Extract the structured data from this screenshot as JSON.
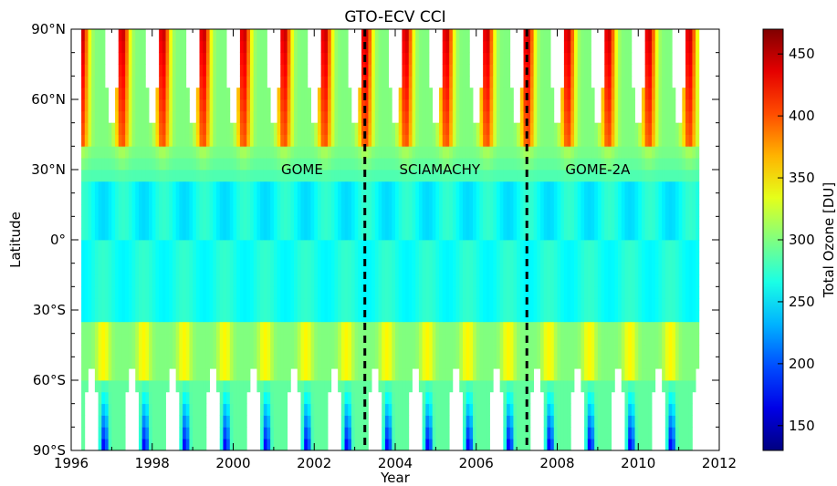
{
  "chart_data": {
    "type": "heatmap",
    "title": "GTO-ECV CCI",
    "xlabel": "Year",
    "ylabel": "Latitude",
    "xlim": [
      1996,
      2012
    ],
    "ylim": [
      -90,
      90
    ],
    "x_ticks": [
      {
        "value": 1996,
        "label": "1996"
      },
      {
        "value": 1998,
        "label": "1998"
      },
      {
        "value": 2000,
        "label": "2000"
      },
      {
        "value": 2002,
        "label": "2002"
      },
      {
        "value": 2004,
        "label": "2004"
      },
      {
        "value": 2006,
        "label": "2006"
      },
      {
        "value": 2008,
        "label": "2008"
      },
      {
        "value": 2010,
        "label": "2010"
      },
      {
        "value": 2012,
        "label": "2012"
      }
    ],
    "y_ticks": [
      {
        "value": 90,
        "label": "90°N"
      },
      {
        "value": 60,
        "label": "60°N"
      },
      {
        "value": 30,
        "label": "30°N"
      },
      {
        "value": 0,
        "label": "0°"
      },
      {
        "value": -30,
        "label": "30°S"
      },
      {
        "value": -60,
        "label": "60°S"
      },
      {
        "value": -90,
        "label": "90°S"
      }
    ],
    "colorbar": {
      "label": "Total Ozone [DU]",
      "range": [
        130,
        470
      ],
      "colormap": "jet",
      "ticks": [
        {
          "value": 150,
          "label": "150"
        },
        {
          "value": 200,
          "label": "200"
        },
        {
          "value": 250,
          "label": "250"
        },
        {
          "value": 300,
          "label": "300"
        },
        {
          "value": 350,
          "label": "350"
        },
        {
          "value": 400,
          "label": "400"
        },
        {
          "value": 450,
          "label": "450"
        }
      ]
    },
    "data_time_range": [
      1996.25,
      2011.5
    ],
    "latitude_bands_deg": [
      -87.5,
      -82.5,
      -77.5,
      -72.5,
      -67.5,
      -62.5,
      -57.5,
      -52.5,
      -47.5,
      -42.5,
      -37.5,
      -32.5,
      -27.5,
      -22.5,
      -17.5,
      -12.5,
      -7.5,
      -2.5,
      2.5,
      7.5,
      12.5,
      17.5,
      22.5,
      27.5,
      32.5,
      37.5,
      42.5,
      47.5,
      52.5,
      57.5,
      62.5,
      67.5,
      72.5,
      77.5,
      82.5,
      87.5
    ],
    "climatology_du": {
      "north_polar_spring_peak": 450,
      "north_midlatitude_spring": 400,
      "tropics_min": 240,
      "tropics_max": 280,
      "south_midlatitude_spring": 345,
      "antarctic_ozone_hole_min": 150
    },
    "instrument_boundaries": [
      2003.25,
      2007.25
    ],
    "annotations": [
      {
        "text": "GOME",
        "x": 2001.7,
        "y": 30
      },
      {
        "text": "SCIAMACHY",
        "x": 2005.1,
        "y": 30
      },
      {
        "text": "GOME-2A",
        "x": 2009.0,
        "y": 30
      }
    ],
    "grid": false
  }
}
